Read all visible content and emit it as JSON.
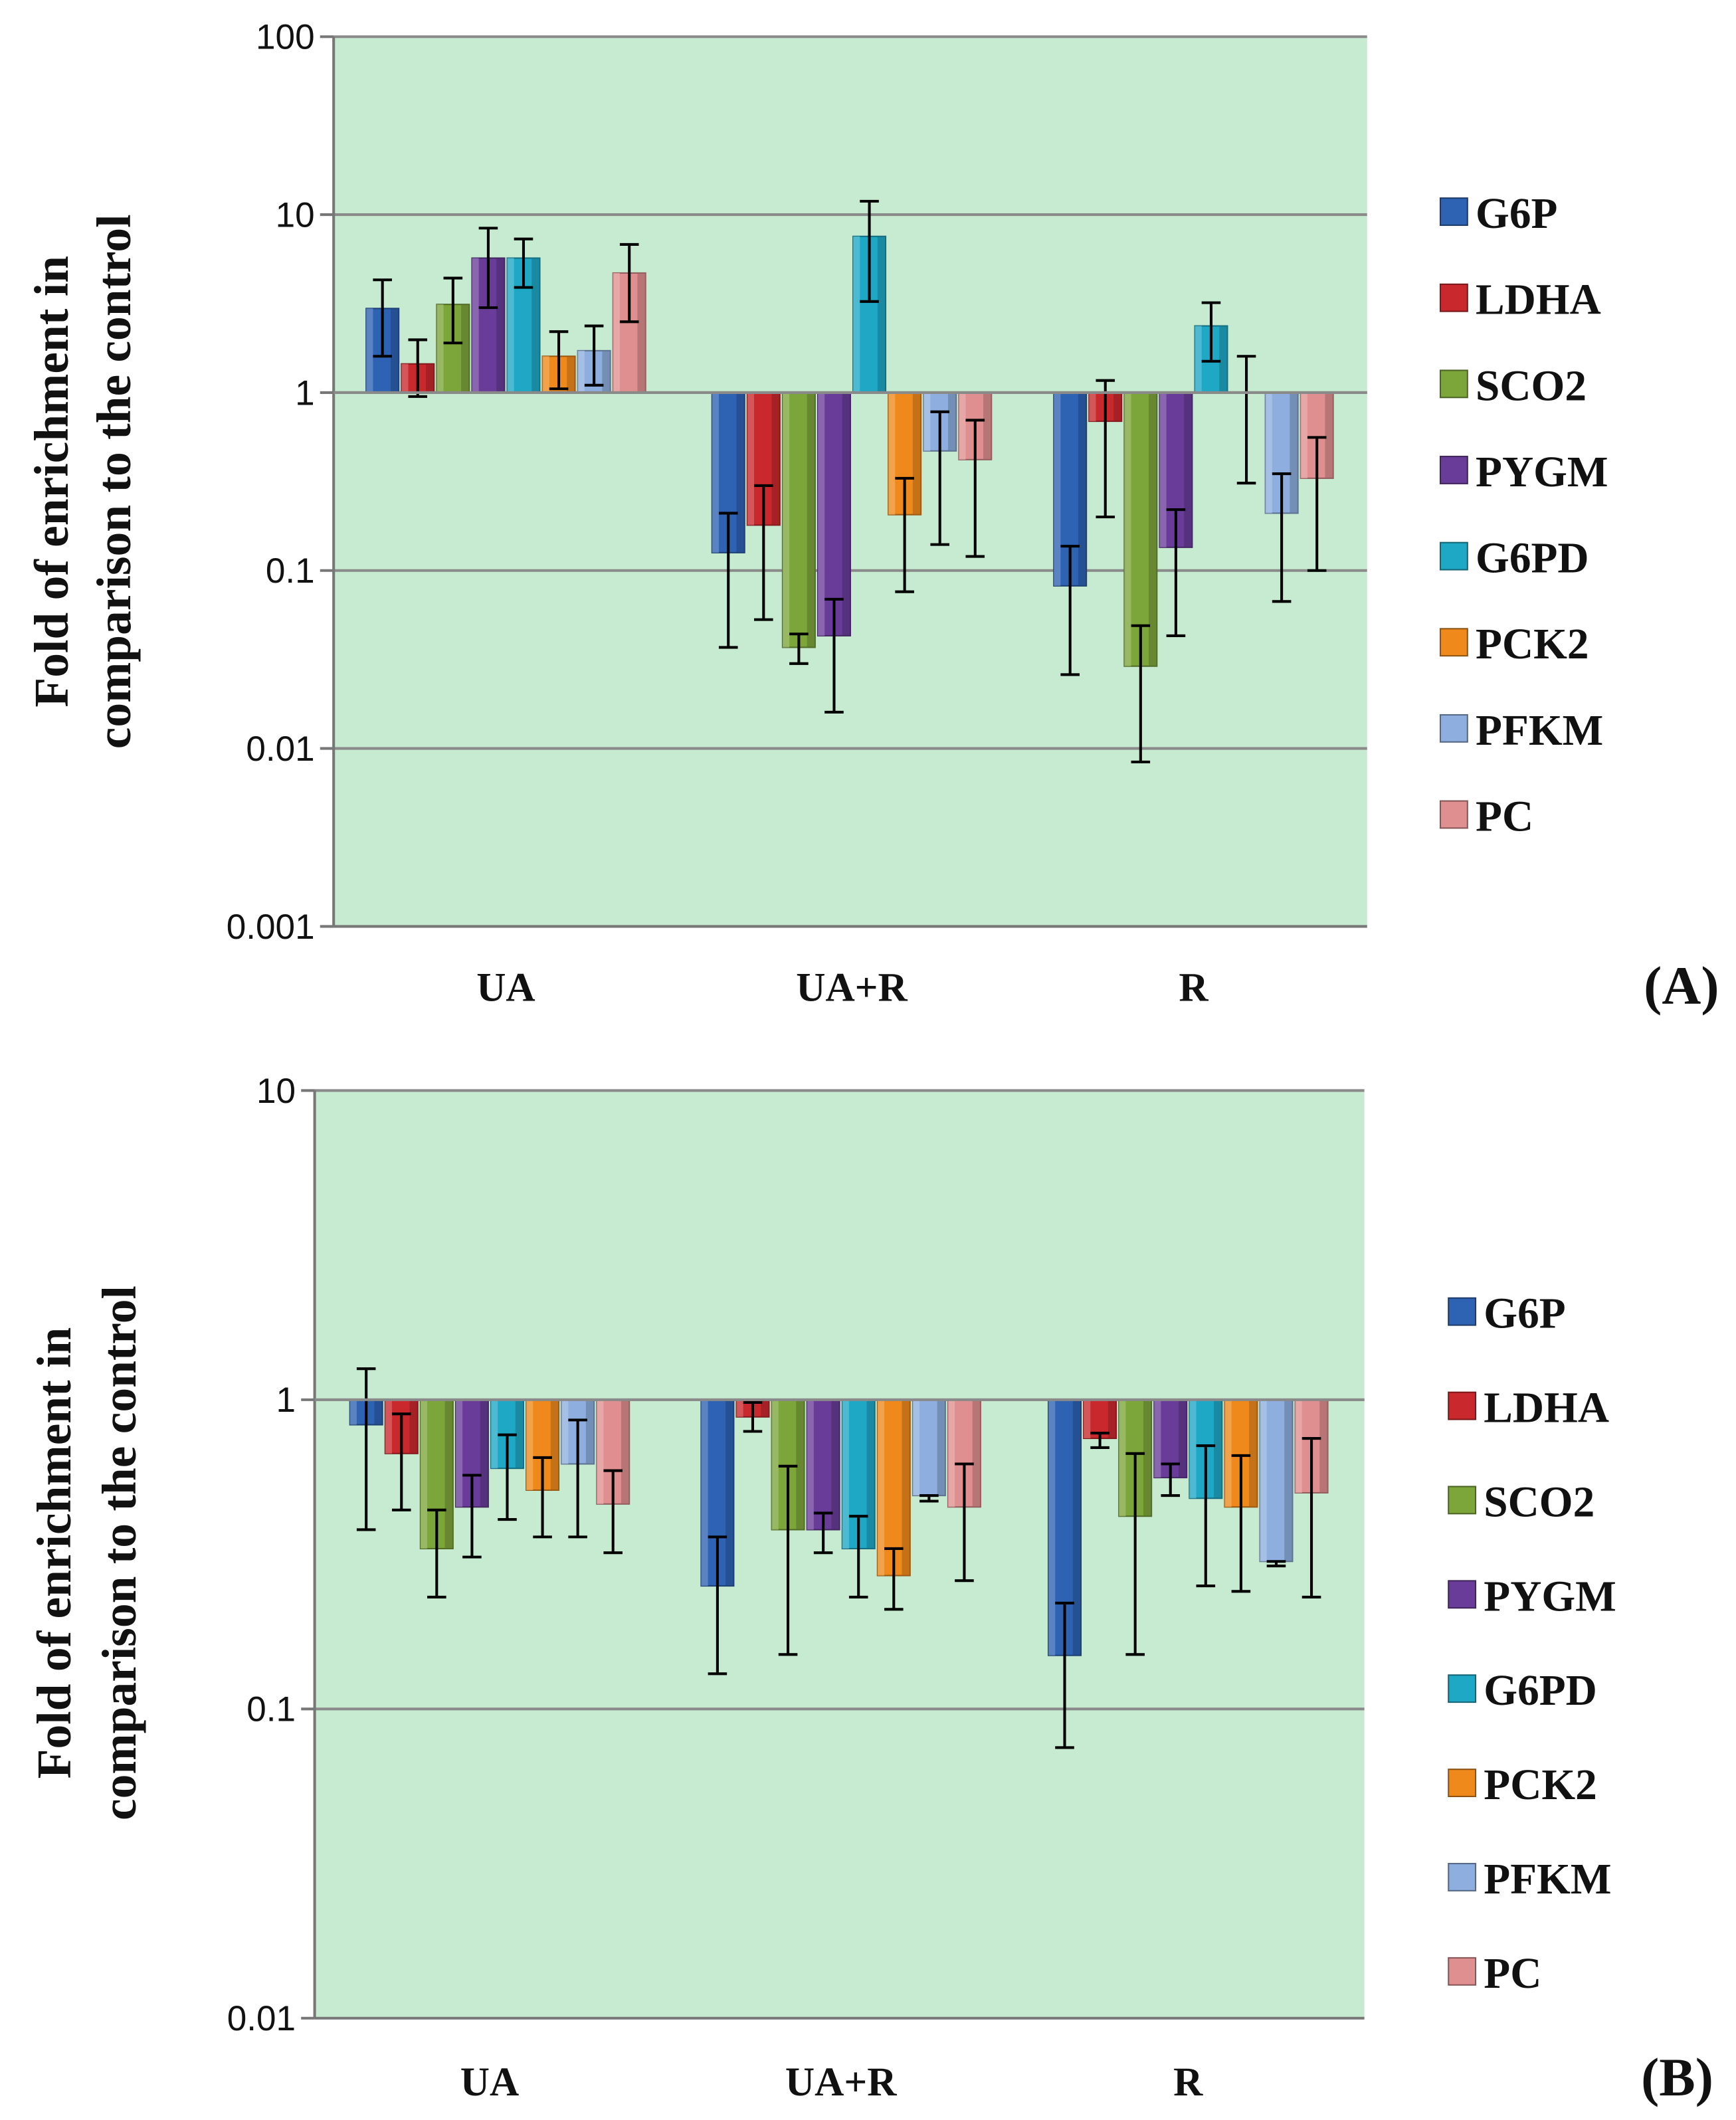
{
  "chart_data": [
    {
      "type": "bar",
      "panel_label": "(A)",
      "ylabel_line1": "Fold of enrichment in",
      "ylabel_line2": "comparison to the control",
      "yscale": "log",
      "ylim": [
        0.001,
        100
      ],
      "yticks": [
        "0.001",
        "0.01",
        "0.1",
        "1",
        "10",
        "100"
      ],
      "baseline": 1,
      "grid": true,
      "legend_position": "right",
      "categories": [
        "UA",
        "UA+R",
        "R"
      ],
      "series": [
        {
          "name": "G6P",
          "color": "#2e63b3",
          "values": [
            2.97,
            0.126,
            0.082
          ],
          "err_high": [
            4.3,
            0.21,
            0.137
          ],
          "err_low": [
            1.6,
            0.037,
            0.026
          ]
        },
        {
          "name": "LDHA",
          "color": "#c9282d",
          "values": [
            1.45,
            0.18,
            0.69
          ],
          "err_high": [
            1.98,
            0.3,
            1.17
          ],
          "err_low": [
            0.95,
            0.053,
            0.2
          ]
        },
        {
          "name": "SCO2",
          "color": "#7da63a",
          "values": [
            3.13,
            0.037,
            0.029
          ],
          "err_high": [
            4.4,
            0.044,
            0.049
          ],
          "err_low": [
            1.9,
            0.03,
            0.0084
          ]
        },
        {
          "name": "PYGM",
          "color": "#6a3c99",
          "values": [
            5.7,
            0.043,
            0.135
          ],
          "err_high": [
            8.4,
            0.069,
            0.22
          ],
          "err_low": [
            3.0,
            0.016,
            0.043
          ]
        },
        {
          "name": "G6PD",
          "color": "#1fa8c5",
          "values": [
            5.7,
            7.55,
            2.37
          ],
          "err_high": [
            7.3,
            11.9,
            3.2
          ],
          "err_low": [
            3.9,
            3.25,
            1.5
          ]
        },
        {
          "name": "PCK2",
          "color": "#ef891c",
          "values": [
            1.6,
            0.206,
            1.0
          ],
          "err_high": [
            2.2,
            0.33,
            1.6
          ],
          "err_low": [
            1.05,
            0.076,
            0.31
          ]
        },
        {
          "name": "PFKM",
          "color": "#8daede",
          "values": [
            1.72,
            0.47,
            0.21
          ],
          "err_high": [
            2.37,
            0.78,
            0.35
          ],
          "err_low": [
            1.1,
            0.14,
            0.067
          ]
        },
        {
          "name": "PC",
          "color": "#df8f8f",
          "values": [
            4.7,
            0.42,
            0.33
          ],
          "err_high": [
            6.8,
            0.7,
            0.56
          ],
          "err_low": [
            2.5,
            0.12,
            0.1
          ]
        }
      ]
    },
    {
      "type": "bar",
      "panel_label": "(B)",
      "ylabel_line1": "Fold of enrichment in",
      "ylabel_line2": "comparison to the control",
      "yscale": "log",
      "ylim": [
        0.01,
        10
      ],
      "yticks": [
        "0.01",
        "0.1",
        "1",
        "10"
      ],
      "baseline": 1,
      "grid": true,
      "legend_position": "right",
      "categories": [
        "UA",
        "UA+R",
        "R"
      ],
      "series": [
        {
          "name": "G6P",
          "color": "#2e63b3",
          "values": [
            0.83,
            0.25,
            0.149
          ],
          "err_high": [
            1.26,
            0.36,
            0.22
          ],
          "err_low": [
            0.38,
            0.13,
            0.075
          ]
        },
        {
          "name": "LDHA",
          "color": "#c9282d",
          "values": [
            0.67,
            0.88,
            0.75
          ],
          "err_high": [
            0.9,
            0.98,
            0.78
          ],
          "err_low": [
            0.44,
            0.79,
            0.7
          ]
        },
        {
          "name": "SCO2",
          "color": "#7da63a",
          "values": [
            0.33,
            0.38,
            0.42
          ],
          "err_high": [
            0.44,
            0.61,
            0.67
          ],
          "err_low": [
            0.23,
            0.15,
            0.15
          ]
        },
        {
          "name": "PYGM",
          "color": "#6a3c99",
          "values": [
            0.45,
            0.38,
            0.56
          ],
          "err_high": [
            0.57,
            0.43,
            0.62
          ],
          "err_low": [
            0.31,
            0.32,
            0.49
          ]
        },
        {
          "name": "G6PD",
          "color": "#1fa8c5",
          "values": [
            0.6,
            0.33,
            0.48
          ],
          "err_high": [
            0.77,
            0.42,
            0.71
          ],
          "err_low": [
            0.41,
            0.23,
            0.25
          ]
        },
        {
          "name": "PCK2",
          "color": "#ef891c",
          "values": [
            0.51,
            0.27,
            0.45
          ],
          "err_high": [
            0.65,
            0.33,
            0.66
          ],
          "err_low": [
            0.36,
            0.21,
            0.24
          ]
        },
        {
          "name": "PFKM",
          "color": "#8daede",
          "values": [
            0.62,
            0.49,
            0.3
          ],
          "err_high": [
            0.86,
            0.49,
            0.3
          ],
          "err_low": [
            0.36,
            0.47,
            0.29
          ]
        },
        {
          "name": "PC",
          "color": "#df8f8f",
          "values": [
            0.46,
            0.45,
            0.5
          ],
          "err_high": [
            0.59,
            0.62,
            0.75
          ],
          "err_low": [
            0.32,
            0.26,
            0.23
          ]
        }
      ]
    }
  ]
}
